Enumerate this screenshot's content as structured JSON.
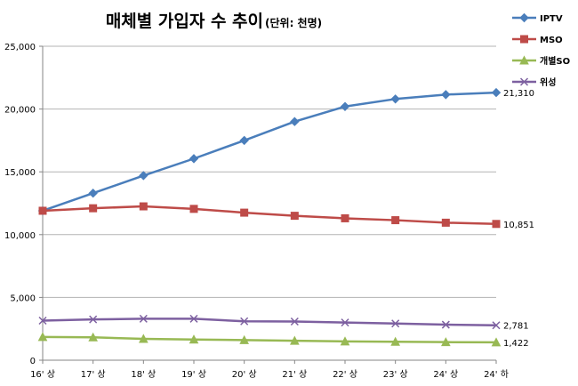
{
  "chart_data": {
    "type": "line",
    "title": "매체별 가입자 수 추이",
    "subtitle": "(단위: 천명)",
    "xlabel": "",
    "ylabel": "",
    "ylim": [
      0,
      25000
    ],
    "yticks": [
      "0",
      "5,000",
      "10,000",
      "15,000",
      "20,000",
      "25,000"
    ],
    "yticks_values": [
      0,
      5000,
      10000,
      15000,
      20000,
      25000
    ],
    "grid": "horizontal",
    "legend_position": "top-right",
    "categories": [
      "16' 상",
      "17' 상",
      "18' 상",
      "19' 상",
      "20' 상",
      "21' 상",
      "22' 상",
      "23' 상",
      "24' 상",
      "24' 하"
    ],
    "series": [
      {
        "name": "IPTV",
        "color": "#4a7ebb",
        "marker": "diamond",
        "values": [
          11900,
          13300,
          14700,
          16050,
          17500,
          19000,
          20200,
          20800,
          21150,
          21310
        ],
        "end_label": "21,310"
      },
      {
        "name": "MSO",
        "color": "#be4b48",
        "marker": "square",
        "values": [
          11900,
          12100,
          12250,
          12050,
          11750,
          11500,
          11300,
          11150,
          10950,
          10851
        ],
        "end_label": "10,851"
      },
      {
        "name": "개별SO",
        "color": "#98b954",
        "marker": "triangle",
        "values": [
          1850,
          1820,
          1700,
          1650,
          1600,
          1550,
          1500,
          1470,
          1440,
          1422
        ],
        "end_label": "1,422"
      },
      {
        "name": "위성",
        "color": "#7d60a0",
        "marker": "x",
        "values": [
          3150,
          3250,
          3300,
          3300,
          3100,
          3080,
          3000,
          2920,
          2830,
          2781
        ],
        "end_label": "2,781"
      }
    ]
  }
}
